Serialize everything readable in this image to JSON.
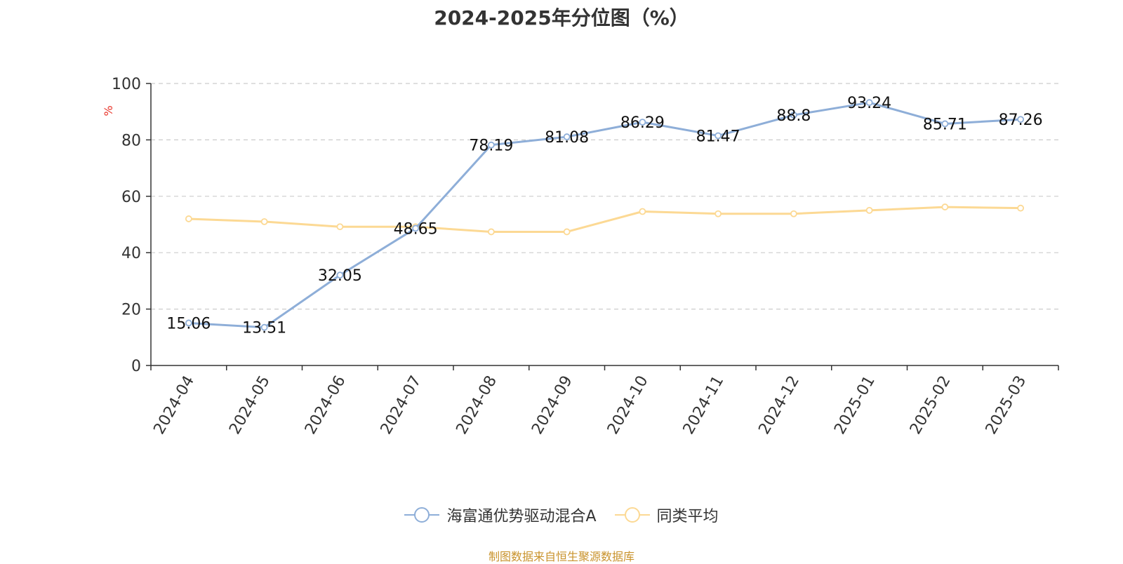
{
  "chart_data": {
    "type": "line",
    "title": "2024-2025年分位图（%）",
    "ylabel": "%",
    "xlabel": "",
    "ylim": [
      0,
      100
    ],
    "yticks": [
      0,
      20,
      40,
      60,
      80,
      100
    ],
    "grid": true,
    "legend_position": "bottom",
    "categories": [
      "2024-04",
      "2024-05",
      "2024-06",
      "2024-07",
      "2024-08",
      "2024-09",
      "2024-10",
      "2024-11",
      "2024-12",
      "2025-01",
      "2025-02",
      "2025-03"
    ],
    "series": [
      {
        "name": "海富通优势驱动混合A",
        "color": "#8eaed8",
        "values": [
          15.06,
          13.51,
          32.05,
          48.65,
          78.19,
          81.08,
          86.29,
          81.47,
          88.8,
          93.24,
          85.71,
          87.26
        ],
        "labels": [
          "15.06",
          "13.51",
          "32.05",
          "48.65",
          "78.19",
          "81.08",
          "86.29",
          "81.47",
          "88.8",
          "93.24",
          "85.71",
          "87.26"
        ],
        "show_labels": true
      },
      {
        "name": "同类平均",
        "color": "#fcd994",
        "values": [
          52.0,
          51.0,
          49.2,
          49.2,
          47.4,
          47.4,
          54.6,
          53.8,
          53.8,
          55.0,
          56.2,
          55.8
        ],
        "show_labels": false
      }
    ]
  },
  "source_note": "制图数据来自恒生聚源数据库"
}
